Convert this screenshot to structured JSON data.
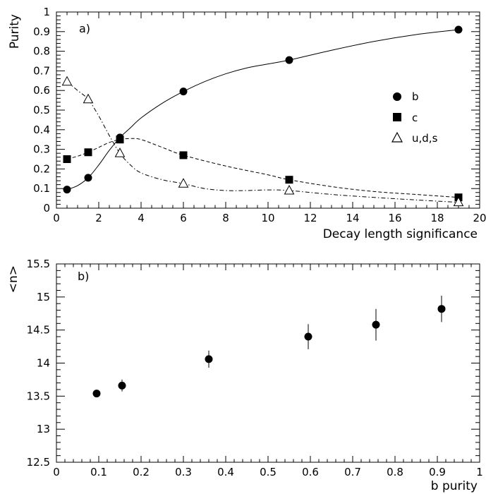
{
  "chart_data": [
    {
      "type": "line",
      "panel_label": "a)",
      "xlabel": "Decay length significance",
      "ylabel": "Purity",
      "xlim": [
        0,
        20
      ],
      "ylim": [
        0,
        1
      ],
      "x_ticks": [
        "0",
        "2",
        "4",
        "6",
        "8",
        "10",
        "12",
        "14",
        "16",
        "18",
        "20"
      ],
      "y_ticks": [
        "0",
        "0.1",
        "0.2",
        "0.3",
        "0.4",
        "0.5",
        "0.6",
        "0.7",
        "0.8",
        "0.9",
        "1"
      ],
      "legend_position": "right",
      "series": [
        {
          "name": "b",
          "marker": "circle",
          "line": "solid",
          "x": [
            0.5,
            1.5,
            3,
            6,
            11,
            19
          ],
          "y": [
            0.095,
            0.155,
            0.36,
            0.595,
            0.755,
            0.91
          ],
          "curve_x": [
            0.5,
            1,
            1.5,
            2,
            2.5,
            3,
            3.5,
            4,
            5,
            6,
            7,
            8,
            9,
            10,
            11,
            13,
            15,
            17,
            19
          ],
          "curve_y": [
            0.095,
            0.115,
            0.155,
            0.22,
            0.295,
            0.36,
            0.41,
            0.46,
            0.535,
            0.595,
            0.645,
            0.685,
            0.715,
            0.735,
            0.755,
            0.805,
            0.85,
            0.885,
            0.91
          ]
        },
        {
          "name": "c",
          "marker": "square",
          "line": "dashed",
          "x": [
            0.5,
            1.5,
            3,
            6,
            11,
            19
          ],
          "y": [
            0.25,
            0.285,
            0.35,
            0.27,
            0.145,
            0.055
          ],
          "curve_x": [
            0.5,
            1,
            1.5,
            2,
            2.5,
            3,
            3.5,
            4,
            5,
            6,
            8,
            10,
            11,
            13,
            15,
            17,
            19
          ],
          "curve_y": [
            0.25,
            0.265,
            0.285,
            0.31,
            0.335,
            0.35,
            0.355,
            0.35,
            0.31,
            0.27,
            0.215,
            0.17,
            0.145,
            0.11,
            0.085,
            0.07,
            0.055
          ]
        },
        {
          "name": "u,d,s",
          "marker": "triangle",
          "line": "dashdot",
          "x": [
            0.5,
            1.5,
            3,
            6,
            11,
            19
          ],
          "y": [
            0.645,
            0.555,
            0.28,
            0.125,
            0.09,
            0.03
          ],
          "curve_x": [
            0.5,
            1,
            1.5,
            2,
            2.5,
            3,
            3.5,
            4,
            5,
            6,
            7,
            8,
            9,
            10,
            11,
            13,
            15,
            17,
            19
          ],
          "curve_y": [
            0.645,
            0.6,
            0.555,
            0.47,
            0.37,
            0.28,
            0.22,
            0.18,
            0.145,
            0.125,
            0.1,
            0.09,
            0.09,
            0.093,
            0.09,
            0.07,
            0.055,
            0.042,
            0.03
          ]
        }
      ]
    },
    {
      "type": "scatter",
      "panel_label": "b)",
      "xlabel": "b purity",
      "ylabel": "<n>",
      "xlim": [
        0,
        1
      ],
      "ylim": [
        12.5,
        15.5
      ],
      "x_ticks": [
        "0",
        "0.1",
        "0.2",
        "0.3",
        "0.4",
        "0.5",
        "0.6",
        "0.7",
        "0.8",
        "0.9",
        "1"
      ],
      "y_ticks": [
        "12.5",
        "13",
        "13.5",
        "14",
        "14.5",
        "15",
        "15.5"
      ],
      "series": [
        {
          "marker": "circle",
          "x": [
            0.095,
            0.155,
            0.36,
            0.595,
            0.755,
            0.91
          ],
          "y": [
            13.54,
            13.66,
            14.06,
            14.4,
            14.58,
            14.82
          ],
          "yerr": [
            0.03,
            0.09,
            0.13,
            0.19,
            0.24,
            0.2
          ]
        }
      ]
    }
  ]
}
